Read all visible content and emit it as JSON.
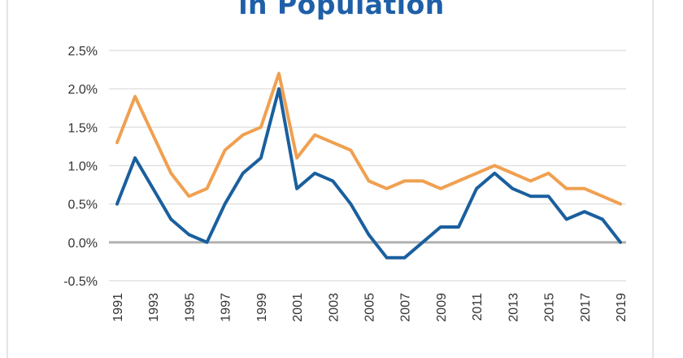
{
  "chart_data": {
    "type": "line",
    "title": "in Population",
    "x": [
      1991,
      1992,
      1993,
      1994,
      1995,
      1996,
      1997,
      1998,
      1999,
      2000,
      2001,
      2002,
      2003,
      2004,
      2005,
      2006,
      2007,
      2008,
      2009,
      2010,
      2011,
      2012,
      2013,
      2014,
      2015,
      2016,
      2017,
      2018,
      2019
    ],
    "x_tick_labels": [
      "1991",
      "1993",
      "1995",
      "1997",
      "1999",
      "2001",
      "2003",
      "2005",
      "2007",
      "2009",
      "2011",
      "2013",
      "2015",
      "2017",
      "2019"
    ],
    "y_tick_labels": [
      "2.5%",
      "2.0%",
      "1.5%",
      "1.0%",
      "0.5%",
      "0.0%",
      "-0.5%"
    ],
    "ylim": [
      -0.5,
      2.5
    ],
    "grid": true,
    "series": [
      {
        "color": "#f0a050",
        "values": [
          1.3,
          1.9,
          1.4,
          0.9,
          0.6,
          0.7,
          1.2,
          1.4,
          1.5,
          2.2,
          1.1,
          1.4,
          1.3,
          1.2,
          0.8,
          0.7,
          0.8,
          0.8,
          0.7,
          0.8,
          0.9,
          1.0,
          0.9,
          0.8,
          0.9,
          0.7,
          0.7,
          0.6,
          0.5
        ]
      },
      {
        "color": "#1a5f9e",
        "values": [
          0.5,
          1.1,
          0.7,
          0.3,
          0.1,
          0.0,
          0.5,
          0.9,
          1.1,
          2.0,
          0.7,
          0.9,
          0.8,
          0.5,
          0.1,
          -0.2,
          -0.2,
          0.0,
          0.2,
          0.2,
          0.7,
          0.9,
          0.7,
          0.6,
          0.6,
          0.3,
          0.4,
          0.3,
          0.0
        ]
      }
    ]
  }
}
